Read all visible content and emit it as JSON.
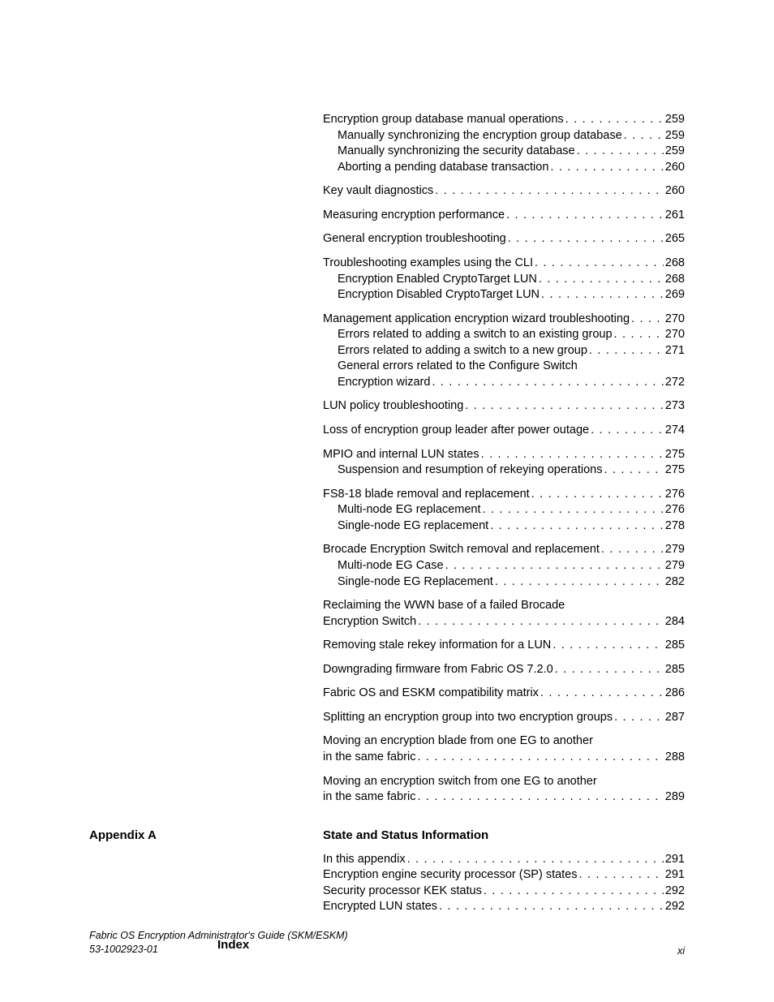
{
  "toc": {
    "groups": [
      {
        "entries": [
          {
            "label": "Encryption group database manual operations",
            "page": "259",
            "indent": 0
          },
          {
            "label": "Manually synchronizing the encryption group database",
            "page": "259",
            "indent": 1
          },
          {
            "label": "Manually synchronizing the security database",
            "page": "259",
            "indent": 1
          },
          {
            "label": "Aborting a pending database transaction",
            "page": "260",
            "indent": 1
          }
        ]
      },
      {
        "entries": [
          {
            "label": "Key vault diagnostics",
            "page": "260",
            "indent": 0
          }
        ]
      },
      {
        "entries": [
          {
            "label": "Measuring encryption performance",
            "page": "261",
            "indent": 0
          }
        ]
      },
      {
        "entries": [
          {
            "label": "General encryption troubleshooting",
            "page": "265",
            "indent": 0
          }
        ]
      },
      {
        "entries": [
          {
            "label": "Troubleshooting examples using the CLI",
            "page": "268",
            "indent": 0
          },
          {
            "label": "Encryption Enabled CryptoTarget LUN",
            "page": "268",
            "indent": 1
          },
          {
            "label": "Encryption Disabled CryptoTarget LUN",
            "page": "269",
            "indent": 1
          }
        ]
      },
      {
        "entries": [
          {
            "label": "Management application encryption wizard troubleshooting",
            "page": "270",
            "indent": 0
          },
          {
            "label": "Errors related to adding a switch to an existing group",
            "page": "270",
            "indent": 1
          },
          {
            "label": "Errors related to adding a switch to a new group",
            "page": "271",
            "indent": 1
          },
          {
            "wrap_first": "General errors related to the Configure Switch",
            "label": "Encryption wizard",
            "page": "272",
            "indent": 1
          }
        ]
      },
      {
        "entries": [
          {
            "label": "LUN policy troubleshooting",
            "page": "273",
            "indent": 0
          }
        ]
      },
      {
        "entries": [
          {
            "label": "Loss of encryption group leader after power outage",
            "page": "274",
            "indent": 0
          }
        ]
      },
      {
        "entries": [
          {
            "label": "MPIO and internal LUN states",
            "page": "275",
            "indent": 0
          },
          {
            "label": "Suspension and resumption of rekeying operations",
            "page": "275",
            "indent": 1
          }
        ]
      },
      {
        "entries": [
          {
            "label": "FS8-18 blade removal and replacement",
            "page": "276",
            "indent": 0
          },
          {
            "label": "Multi-node EG replacement",
            "page": "276",
            "indent": 1
          },
          {
            "label": "Single-node EG replacement",
            "page": "278",
            "indent": 1
          }
        ]
      },
      {
        "entries": [
          {
            "label": "Brocade Encryption Switch removal and replacement",
            "page": "279",
            "indent": 0
          },
          {
            "label": "Multi-node EG Case",
            "page": "279",
            "indent": 1
          },
          {
            "label": "Single-node EG Replacement",
            "page": "282",
            "indent": 1
          }
        ]
      },
      {
        "entries": [
          {
            "wrap_first": "Reclaiming the WWN base of a failed Brocade",
            "label": "Encryption Switch",
            "page": "284",
            "indent": 0
          }
        ]
      },
      {
        "entries": [
          {
            "label": "Removing stale rekey information for a LUN",
            "page": "285",
            "indent": 0
          }
        ]
      },
      {
        "entries": [
          {
            "label": "Downgrading firmware from Fabric OS 7.2.0",
            "page": "285",
            "indent": 0
          }
        ]
      },
      {
        "entries": [
          {
            "label": "Fabric OS and ESKM compatibility matrix",
            "page": "286",
            "indent": 0
          }
        ]
      },
      {
        "entries": [
          {
            "label": "Splitting an encryption group into two encryption groups",
            "page": "287",
            "indent": 0
          }
        ]
      },
      {
        "entries": [
          {
            "wrap_first": "Moving an encryption blade from one EG to another",
            "label": "in the same fabric",
            "page": "288",
            "indent": 0
          }
        ]
      },
      {
        "entries": [
          {
            "wrap_first": "Moving an encryption switch from one EG to another",
            "label": "in the same fabric",
            "page": "289",
            "indent": 0
          }
        ]
      }
    ]
  },
  "appendix": {
    "left_label": "Appendix A",
    "title": "State and Status Information",
    "entries": [
      {
        "label": "In this appendix",
        "page": " 291",
        "indent": 0
      },
      {
        "label": "Encryption engine security processor (SP) states",
        "page": "291",
        "indent": 0
      },
      {
        "label": "Security processor KEK status",
        "page": "292",
        "indent": 0
      },
      {
        "label": "Encrypted LUN states",
        "page": "292",
        "indent": 0
      }
    ]
  },
  "index_label": "Index",
  "footer": {
    "title": "Fabric OS Encryption Administrator's Guide (SKM/ESKM)",
    "doc_num": "53-1002923-01",
    "page_num": "xi"
  }
}
